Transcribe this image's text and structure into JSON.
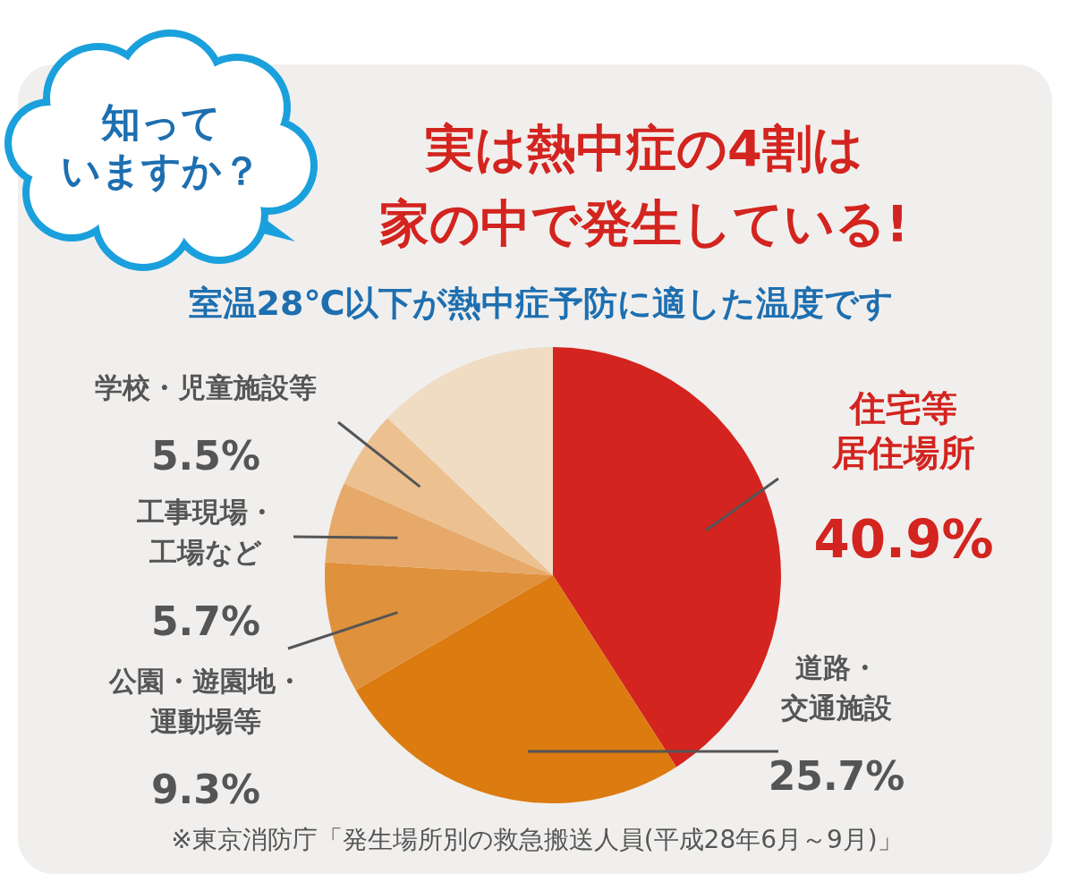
{
  "chart_data": {
    "type": "pie",
    "title": "実は熱中症の4割は家の中で発生している!",
    "subtitle": "室温28℃以下が熱中症予防に適した温度です",
    "categories": [
      "住宅等居住場所",
      "道路・交通施設",
      "公園・遊園地・運動場等",
      "工事現場・工場など",
      "学校・児童施設等",
      null
    ],
    "values": [
      40.9,
      25.7,
      9.3,
      5.7,
      5.5,
      12.9
    ],
    "colors": [
      "#d3241f",
      "#db7b10",
      "#e0913c",
      "#e6a96a",
      "#ecc18f",
      "#f0dcc3"
    ],
    "value_labels": [
      "40.9%",
      "25.7%",
      "9.3%",
      "5.7%",
      "5.5%",
      null
    ],
    "annotations": [
      "知っていますか？",
      "※東京消防庁「発生場所別の救急搬送人員(平成28年6月～9月)」"
    ]
  }
}
